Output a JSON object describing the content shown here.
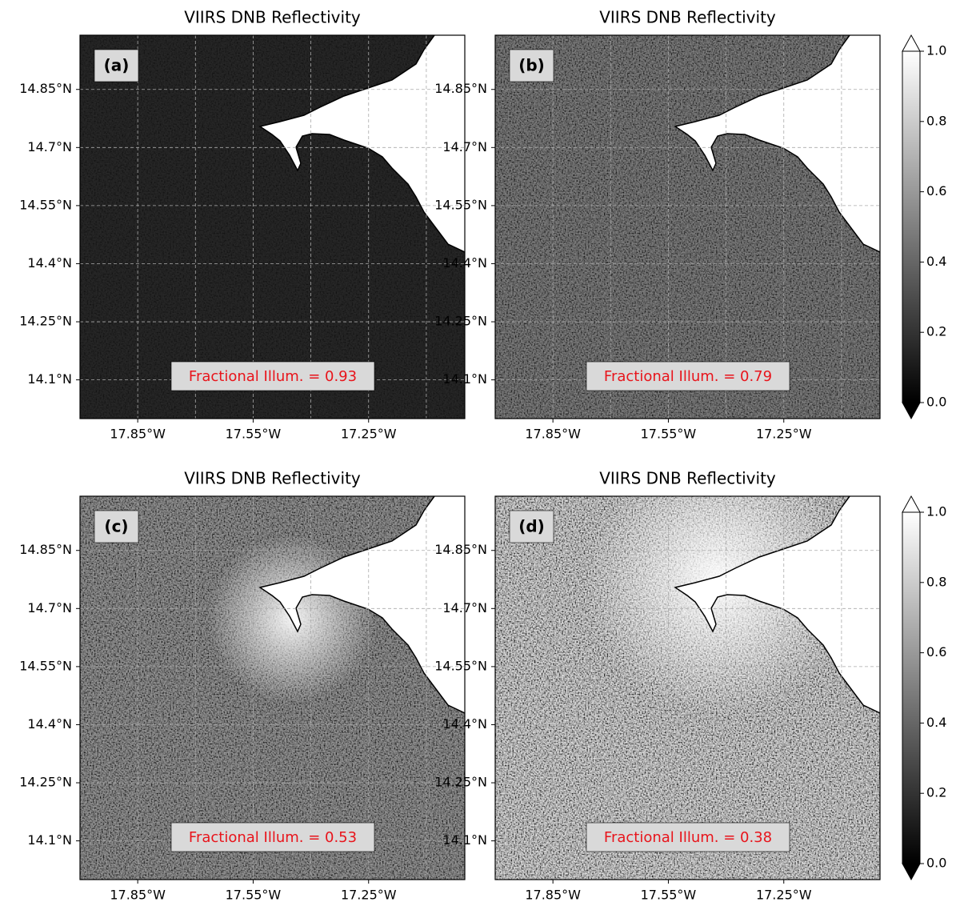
{
  "panels": [
    {
      "title": "VIIRS DNB Reflectivity",
      "label": "(a)",
      "annotation": "Fractional Illum. = 0.93"
    },
    {
      "title": "VIIRS DNB Reflectivity",
      "label": "(b)",
      "annotation": "Fractional Illum. = 0.79"
    },
    {
      "title": "VIIRS DNB Reflectivity",
      "label": "(c)",
      "annotation": "Fractional Illum. = 0.53"
    },
    {
      "title": "VIIRS DNB Reflectivity",
      "label": "(d)",
      "annotation": "Fractional Illum. = 0.38"
    }
  ],
  "axes": {
    "lon_range": [
      -18.0,
      -17.0
    ],
    "lat_range": [
      14.0,
      14.99
    ],
    "lon_ticks": [
      {
        "value": -17.85,
        "label": "17.85°W"
      },
      {
        "value": -17.55,
        "label": "17.55°W"
      },
      {
        "value": -17.25,
        "label": "17.25°W"
      }
    ],
    "lat_ticks": [
      {
        "value": 14.85,
        "label": "14.85°N"
      },
      {
        "value": 14.7,
        "label": "14.7°N"
      },
      {
        "value": 14.55,
        "label": "14.55°N"
      },
      {
        "value": 14.4,
        "label": "14.4°N"
      },
      {
        "value": 14.25,
        "label": "14.25°N"
      },
      {
        "value": 14.1,
        "label": "14.1°N"
      }
    ],
    "lon_gridlines": [
      -17.85,
      -17.7,
      -17.55,
      -17.4,
      -17.25,
      -17.1
    ],
    "lat_gridlines": [
      14.85,
      14.7,
      14.55,
      14.4,
      14.25,
      14.1
    ]
  },
  "colorbar": {
    "range": [
      0,
      1
    ],
    "ticks": [
      {
        "value": 0,
        "label": "0.0"
      },
      0.2,
      0.4,
      0.6,
      0.8,
      {
        "value": 1,
        "label": "1.0"
      }
    ]
  }
}
